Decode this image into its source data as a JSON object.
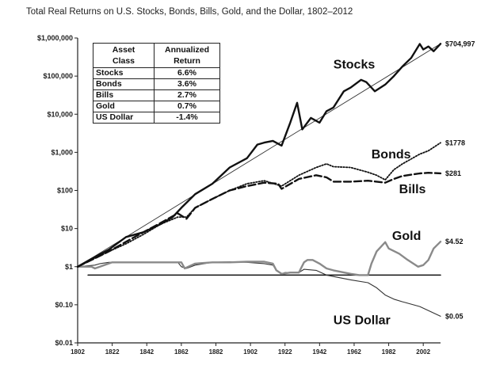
{
  "chart_data": {
    "type": "line",
    "title": "Total Real Returns on U.S. Stocks, Bonds, Bills, Gold, and the Dollar, 1802–2012",
    "y_scale": "log",
    "ylim": [
      0.01,
      1000000
    ],
    "xlim": [
      1802,
      2012
    ],
    "y_ticks": [
      {
        "value": 0.01,
        "label": "$0.01"
      },
      {
        "value": 0.1,
        "label": "$0.10"
      },
      {
        "value": 1,
        "label": "$1"
      },
      {
        "value": 10,
        "label": "$10"
      },
      {
        "value": 100,
        "label": "$100"
      },
      {
        "value": 1000,
        "label": "$1,000"
      },
      {
        "value": 10000,
        "label": "$10,000"
      },
      {
        "value": 100000,
        "label": "$100,000"
      },
      {
        "value": 1000000,
        "label": "$1,000,000"
      }
    ],
    "x_ticks": [
      1802,
      1822,
      1842,
      1862,
      1882,
      1902,
      1922,
      1942,
      1962,
      1982,
      2002
    ],
    "series": [
      {
        "name": "Stocks",
        "end_label": "$704,997",
        "x": [
          1802,
          1810,
          1820,
          1830,
          1840,
          1850,
          1857,
          1862,
          1870,
          1880,
          1890,
          1900,
          1906,
          1910,
          1915,
          1920,
          1925,
          1929,
          1932,
          1937,
          1942,
          1946,
          1950,
          1956,
          1960,
          1966,
          1969,
          1974,
          1980,
          1985,
          1990,
          1995,
          2000,
          2002,
          2005,
          2008,
          2012
        ],
        "y": [
          1,
          1.6,
          2.8,
          6,
          8,
          13,
          20,
          35,
          80,
          150,
          400,
          700,
          1600,
          1800,
          2000,
          1500,
          6000,
          20000,
          4000,
          8000,
          6000,
          12000,
          15000,
          40000,
          50000,
          80000,
          70000,
          40000,
          60000,
          100000,
          180000,
          300000,
          700000,
          500000,
          600000,
          450000,
          704997
        ]
      },
      {
        "name": "Bonds",
        "end_label": "$1778",
        "x": [
          1802,
          1810,
          1820,
          1830,
          1840,
          1850,
          1860,
          1865,
          1870,
          1880,
          1890,
          1900,
          1910,
          1920,
          1930,
          1940,
          1946,
          1950,
          1960,
          1970,
          1975,
          1980,
          1985,
          1990,
          2000,
          2005,
          2012
        ],
        "y": [
          1,
          1.5,
          2.5,
          4,
          7,
          13,
          20,
          20,
          35,
          60,
          100,
          150,
          180,
          130,
          250,
          400,
          500,
          420,
          400,
          300,
          250,
          190,
          350,
          500,
          900,
          1100,
          1778
        ]
      },
      {
        "name": "Bills",
        "end_label": "$281",
        "x": [
          1802,
          1810,
          1820,
          1830,
          1840,
          1850,
          1860,
          1865,
          1870,
          1880,
          1890,
          1900,
          1910,
          1918,
          1920,
          1930,
          1940,
          1946,
          1950,
          1960,
          1970,
          1975,
          1980,
          1985,
          1990,
          2000,
          2005,
          2012
        ],
        "y": [
          1,
          1.5,
          2.5,
          4.5,
          8,
          14,
          25,
          18,
          35,
          60,
          100,
          130,
          160,
          150,
          110,
          200,
          250,
          220,
          170,
          170,
          180,
          170,
          160,
          200,
          240,
          280,
          290,
          281
        ]
      },
      {
        "name": "Gold",
        "end_label": "$4.52",
        "x": [
          1802,
          1810,
          1812,
          1822,
          1832,
          1842,
          1852,
          1862,
          1864,
          1866,
          1870,
          1880,
          1890,
          1900,
          1910,
          1915,
          1917,
          1920,
          1925,
          1930,
          1933,
          1935,
          1938,
          1942,
          1946,
          1950,
          1960,
          1965,
          1970,
          1972,
          1975,
          1980,
          1982,
          1988,
          1993,
          1999,
          2002,
          2005,
          2008,
          2012
        ],
        "y": [
          1,
          1.0,
          0.9,
          1.3,
          1.3,
          1.3,
          1.3,
          1.3,
          0.9,
          1.0,
          1.2,
          1.3,
          1.3,
          1.35,
          1.35,
          1.2,
          0.8,
          0.65,
          0.7,
          0.7,
          1.3,
          1.5,
          1.5,
          1.2,
          0.9,
          0.8,
          0.65,
          0.6,
          0.6,
          1.2,
          2.5,
          4.4,
          3.0,
          2.2,
          1.5,
          1.0,
          1.1,
          1.5,
          3.0,
          4.52
        ]
      },
      {
        "name": "US Dollar",
        "end_label": "$0.05",
        "x": [
          1802,
          1812,
          1815,
          1820,
          1830,
          1840,
          1850,
          1860,
          1862,
          1865,
          1870,
          1880,
          1890,
          1900,
          1910,
          1915,
          1917,
          1920,
          1922,
          1930,
          1933,
          1940,
          1946,
          1950,
          1960,
          1970,
          1975,
          1980,
          1985,
          1990,
          2000,
          2012
        ],
        "y": [
          1,
          1.1,
          1.2,
          1.3,
          1.3,
          1.3,
          1.3,
          1.3,
          1.0,
          0.9,
          1.1,
          1.3,
          1.35,
          1.3,
          1.2,
          1.1,
          0.8,
          0.65,
          0.7,
          0.7,
          0.85,
          0.8,
          0.6,
          0.55,
          0.45,
          0.38,
          0.28,
          0.18,
          0.14,
          0.12,
          0.09,
          0.05
        ]
      },
      {
        "name": "Trend line",
        "x": [
          1802,
          2012
        ],
        "y": [
          1,
          704997
        ]
      },
      {
        "name": "Reference $1",
        "x": [
          1808,
          2012
        ],
        "y": [
          0.6,
          0.6
        ]
      }
    ],
    "annotations": [
      "Stocks",
      "Bonds",
      "Bills",
      "Gold",
      "US Dollar"
    ],
    "table": {
      "headers": [
        [
          "Asset",
          "Class"
        ],
        [
          "Annualized",
          "Return"
        ]
      ],
      "rows": [
        [
          "Stocks",
          "6.6%"
        ],
        [
          "Bonds",
          "3.6%"
        ],
        [
          "Bills",
          "2.7%"
        ],
        [
          "Gold",
          "0.7%"
        ],
        [
          "US Dollar",
          "-1.4%"
        ]
      ]
    }
  }
}
